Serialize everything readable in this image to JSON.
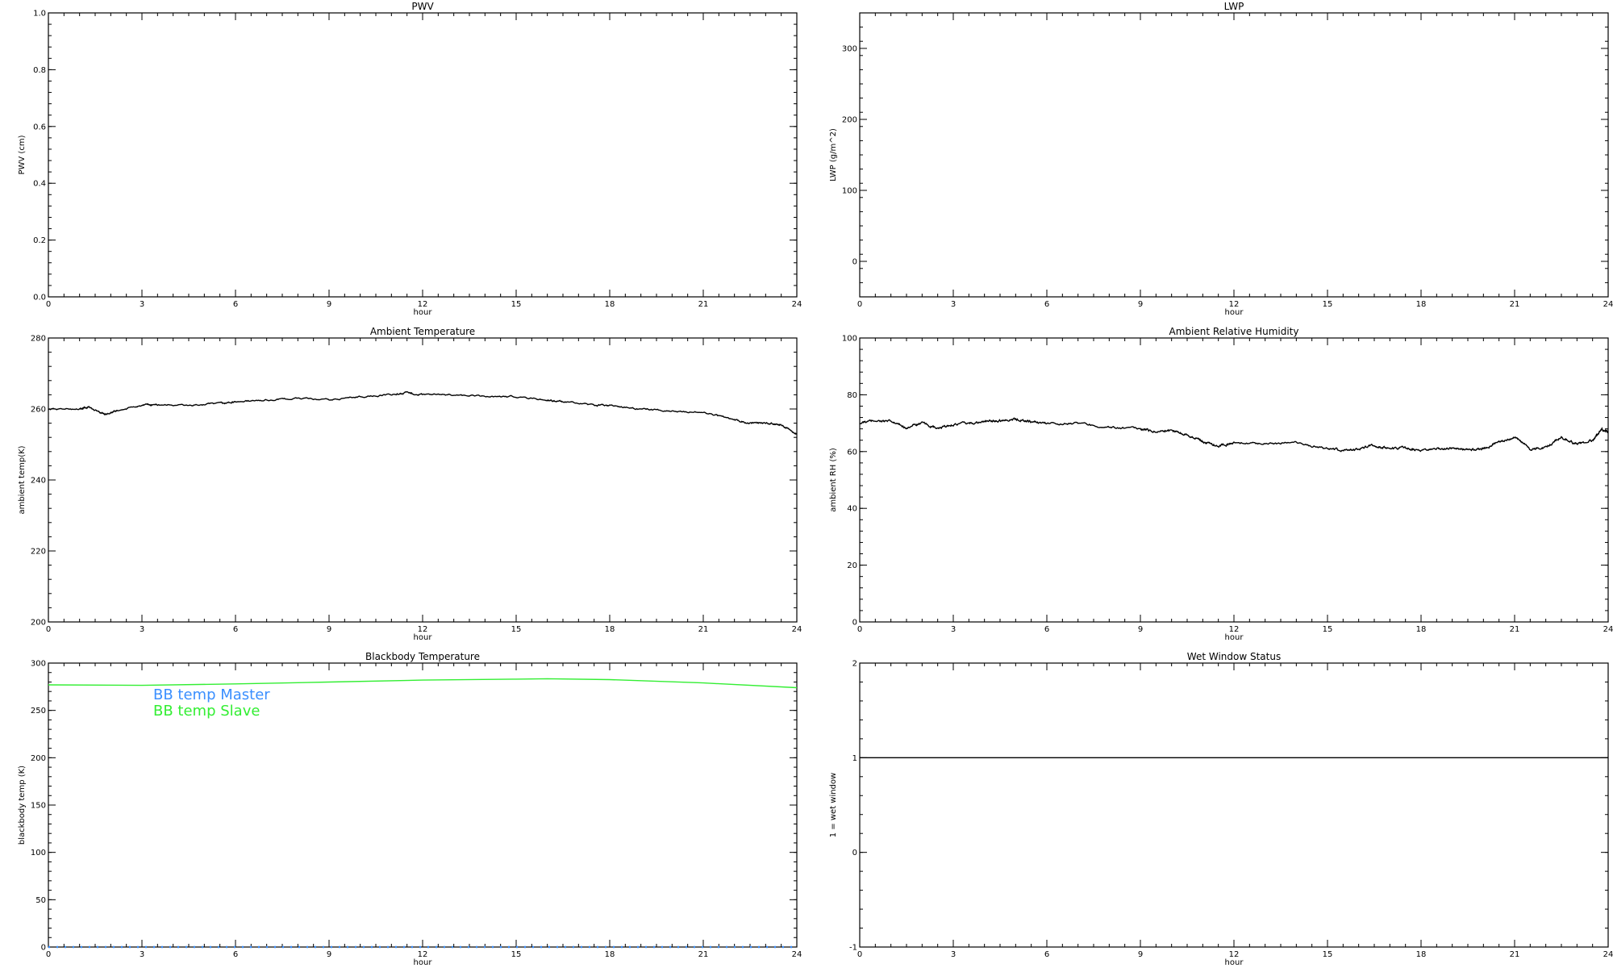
{
  "chart_data": [
    {
      "id": "pwv",
      "type": "line",
      "title": "PWV",
      "xlabel": "hour",
      "ylabel": "PWV (cm)",
      "xlim": [
        0,
        24
      ],
      "ylim": [
        0.0,
        1.0
      ],
      "xticks": [
        0,
        3,
        6,
        9,
        12,
        15,
        18,
        21,
        24
      ],
      "yticks": [
        0.0,
        0.2,
        0.4,
        0.6,
        0.8,
        1.0
      ],
      "ytick_decimals": 1,
      "series": []
    },
    {
      "id": "lwp",
      "type": "line",
      "title": "LWP",
      "xlabel": "hour",
      "ylabel": "LWP (g/m^2)",
      "xlim": [
        0,
        24
      ],
      "ylim": [
        -50,
        350
      ],
      "xticks": [
        0,
        3,
        6,
        9,
        12,
        15,
        18,
        21,
        24
      ],
      "yticks": [
        0,
        100,
        200,
        300
      ],
      "ytick_decimals": 0,
      "series": []
    },
    {
      "id": "ambient-temperature",
      "type": "line",
      "title": "Ambient Temperature",
      "xlabel": "hour",
      "ylabel": "ambient temp(K)",
      "xlim": [
        0,
        24
      ],
      "ylim": [
        200,
        280
      ],
      "xticks": [
        0,
        3,
        6,
        9,
        12,
        15,
        18,
        21,
        24
      ],
      "yticks": [
        200,
        220,
        240,
        260,
        280
      ],
      "ytick_decimals": 0,
      "series": [
        {
          "color": "#000000",
          "noise": 0.35,
          "x": [
            0,
            1,
            1.3,
            1.8,
            2.2,
            3,
            3.5,
            4.5,
            5.5,
            6,
            7,
            8,
            9,
            10,
            11,
            11.5,
            12,
            13,
            14,
            15,
            16,
            16.5,
            17.5,
            18,
            19,
            20,
            21,
            22,
            22.5,
            23,
            23.5,
            24
          ],
          "y": [
            260,
            260,
            260.5,
            258.5,
            259.5,
            261,
            261.2,
            261,
            261.5,
            262,
            262.5,
            263,
            262.5,
            263.5,
            264,
            264.5,
            264,
            264,
            263.5,
            263.5,
            262.5,
            262,
            261,
            261,
            260,
            259.5,
            259,
            257,
            256,
            256,
            255.5,
            253
          ]
        }
      ]
    },
    {
      "id": "ambient-relative-humidity",
      "type": "line",
      "title": "Ambient Relative Humidity",
      "xlabel": "hour",
      "ylabel": "ambient RH (%)",
      "xlim": [
        0,
        24
      ],
      "ylim": [
        0,
        100
      ],
      "xticks": [
        0,
        3,
        6,
        9,
        12,
        15,
        18,
        21,
        24
      ],
      "yticks": [
        0,
        20,
        40,
        60,
        80,
        100
      ],
      "ytick_decimals": 0,
      "series": [
        {
          "color": "#000000",
          "noise": 0.6,
          "x": [
            0,
            0.5,
            1,
            1.5,
            2,
            2.5,
            3,
            3.5,
            4,
            4.5,
            5,
            5.5,
            6,
            7,
            8,
            9,
            9.5,
            10,
            10.5,
            11,
            11.5,
            12,
            13,
            14,
            15,
            15.5,
            16,
            16.5,
            17,
            17.5,
            18,
            18.5,
            19,
            19.5,
            20,
            20.5,
            21,
            21.5,
            22,
            22.5,
            23,
            23.5,
            23.8,
            24
          ],
          "y": [
            70,
            71,
            70.5,
            68.5,
            70,
            68,
            69.5,
            70,
            70.5,
            71,
            71.5,
            70.5,
            70,
            70,
            68.5,
            68,
            67,
            67.5,
            66,
            63.5,
            62,
            63,
            63,
            63,
            61,
            60.5,
            61,
            62,
            61,
            61.5,
            60,
            61,
            61,
            60.5,
            61,
            63.5,
            65,
            61,
            61.5,
            65,
            62.5,
            64,
            68,
            67
          ]
        }
      ]
    },
    {
      "id": "blackbody-temperature",
      "type": "line",
      "title": "Blackbody Temperature",
      "xlabel": "hour",
      "ylabel": "blackbody temp (K)",
      "xlim": [
        0,
        24
      ],
      "ylim": [
        0,
        300
      ],
      "xticks": [
        0,
        3,
        6,
        9,
        12,
        15,
        18,
        21,
        24
      ],
      "yticks": [
        0,
        50,
        100,
        150,
        200,
        250,
        300
      ],
      "ytick_decimals": 0,
      "legend": [
        {
          "label": "BB temp Master",
          "color": "#3a8fff"
        },
        {
          "label": "BB temp Slave",
          "color": "#33ee33"
        }
      ],
      "series": [
        {
          "name": "BB temp Slave",
          "color": "#33ee33",
          "noise": 0,
          "x": [
            0,
            3,
            6,
            9,
            12,
            15,
            16,
            18,
            21,
            24
          ],
          "y": [
            277,
            276.5,
            278,
            280,
            282,
            283,
            283.5,
            282.5,
            279,
            274
          ]
        },
        {
          "name": "BB temp Master",
          "color": "#3a8fff",
          "dashed": true,
          "noise": 0,
          "x": [
            0,
            24
          ],
          "y": [
            0,
            0
          ]
        }
      ]
    },
    {
      "id": "wet-window-status",
      "type": "line",
      "title": "Wet Window Status",
      "xlabel": "hour",
      "ylabel": "1 = wet window",
      "xlim": [
        0,
        24
      ],
      "ylim": [
        -1,
        2
      ],
      "xticks": [
        0,
        3,
        6,
        9,
        12,
        15,
        18,
        21,
        24
      ],
      "yticks": [
        -1,
        0,
        1,
        2
      ],
      "ytick_decimals": 0,
      "series": [
        {
          "color": "#000000",
          "noise": 0,
          "x": [
            0,
            24
          ],
          "y": [
            1,
            1
          ]
        }
      ]
    }
  ]
}
